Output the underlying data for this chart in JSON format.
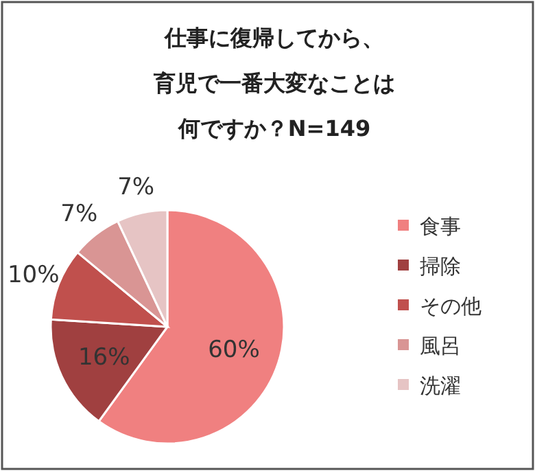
{
  "chart_data": {
    "type": "pie",
    "title": "仕事に復帰してから、育児で一番大変なことは何ですか？N=149",
    "categories": [
      "食事",
      "掃除",
      "その他",
      "風呂",
      "洗濯"
    ],
    "values": [
      60,
      16,
      10,
      7,
      7
    ],
    "colors": [
      "#f08080",
      "#a04040",
      "#c0504d",
      "#d99594",
      "#e6c4c4"
    ],
    "value_labels": [
      "60%",
      "16%",
      "10%",
      "7%",
      "7%"
    ],
    "legend": "right"
  }
}
